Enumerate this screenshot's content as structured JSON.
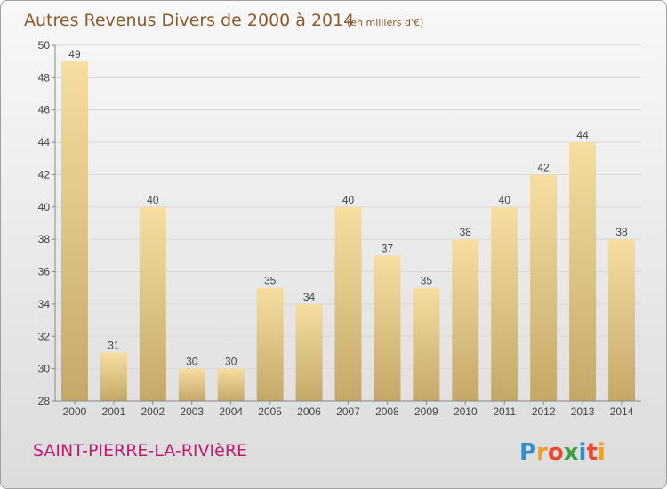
{
  "chart_data": {
    "type": "bar",
    "title": "Autres Revenus Divers de 2000 à 2014",
    "subtitle": "(en milliers d'€)",
    "categories": [
      "2000",
      "2001",
      "2002",
      "2003",
      "2004",
      "2005",
      "2006",
      "2007",
      "2008",
      "2009",
      "2010",
      "2011",
      "2012",
      "2013",
      "2014"
    ],
    "values": [
      49,
      31,
      40,
      30,
      30,
      35,
      34,
      40,
      37,
      35,
      38,
      40,
      42,
      44,
      38
    ],
    "ylim": [
      28,
      50
    ],
    "yticks": [
      28,
      30,
      32,
      34,
      36,
      38,
      40,
      42,
      44,
      46,
      48,
      50
    ],
    "grid": true,
    "colors": {
      "bar_light": "#f6dea0",
      "bar_dark": "#c4a868",
      "grid": "#d8d8d8",
      "axis": "#888888"
    }
  },
  "footer": {
    "town": "SAINT-PIERRE-LA-RIVIèRE",
    "brand_letters": [
      "P",
      "r",
      "o",
      "x",
      "i",
      "t",
      "i"
    ],
    "brand_colors": [
      "#2f8fd0",
      "#f0a020",
      "#e84a30",
      "#3aa040",
      "#2f8fd0",
      "#e84a30",
      "#f0a020"
    ]
  }
}
